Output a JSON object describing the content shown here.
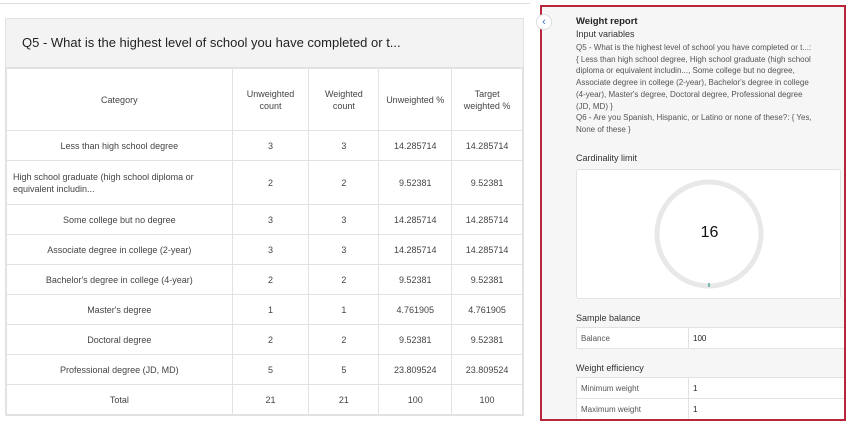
{
  "card": {
    "title": "Q5 - What is the highest level of school you have completed or t...",
    "headers": [
      "Category",
      "Unweighted count",
      "Weighted count",
      "Unweighted %",
      "Target weighted %"
    ],
    "rows": [
      [
        "Less than high school degree",
        "3",
        "3",
        "14.285714",
        "14.285714"
      ],
      [
        "High school graduate (high school diploma or equivalent includin...",
        "2",
        "2",
        "9.52381",
        "9.52381"
      ],
      [
        "Some college but no degree",
        "3",
        "3",
        "14.285714",
        "14.285714"
      ],
      [
        "Associate degree in college (2-year)",
        "3",
        "3",
        "14.285714",
        "14.285714"
      ],
      [
        "Bachelor's degree in college (4-year)",
        "2",
        "2",
        "9.52381",
        "9.52381"
      ],
      [
        "Master's degree",
        "1",
        "1",
        "4.761905",
        "4.761905"
      ],
      [
        "Doctoral degree",
        "2",
        "2",
        "9.52381",
        "9.52381"
      ],
      [
        "Professional degree (JD, MD)",
        "5",
        "5",
        "23.809524",
        "23.809524"
      ],
      [
        "Total",
        "21",
        "21",
        "100",
        "100"
      ]
    ]
  },
  "panel": {
    "back_icon": "chevron-left-icon",
    "title": "Weight report",
    "input_label": "Input variables",
    "q5": "Q5 - What is the highest level of school you have completed or t...: { Less than high school degree, High school graduate (high school diploma or equivalent includin..., Some college but no degree, Associate degree in college (2-year), Bachelor's degree in college (4-year), Master's degree, Doctoral degree, Professional degree (JD, MD) }",
    "q6": "Q6 - Are you Spanish, Hispanic, or Latino or none of these?: { Yes, None of these }",
    "cardinality_label": "Cardinality limit",
    "cardinality_value": "16",
    "sample_label": "Sample balance",
    "balance_key": "Balance",
    "balance_value": "100",
    "efficiency_label": "Weight efficiency",
    "min_key": "Minimum weight",
    "min_value": "1",
    "max_key": "Maximum weight",
    "max_value": "1",
    "accent": "#b7263a"
  }
}
